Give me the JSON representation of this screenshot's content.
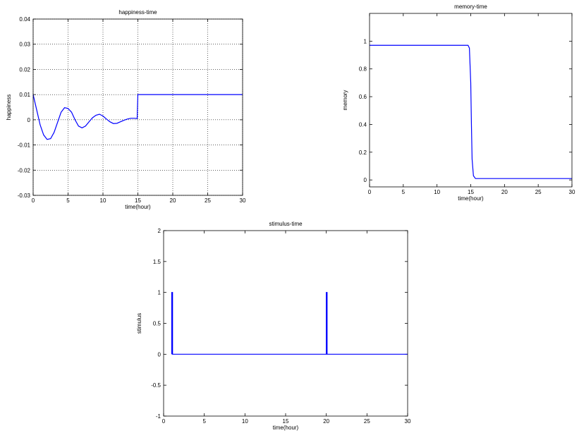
{
  "chart_data": [
    {
      "type": "line",
      "title": "happiness-time",
      "x_label": "time(hour)",
      "y_label": "happiness",
      "xlim": [
        0,
        30
      ],
      "xticks": [
        0,
        5,
        10,
        15,
        20,
        25,
        30
      ],
      "ylim": [
        -0.03,
        0.04
      ],
      "yticks": [
        -0.03,
        -0.02,
        -0.01,
        0,
        0.01,
        0.02,
        0.03,
        0.04
      ],
      "grid": true,
      "series": [
        {
          "color": "#0000ff",
          "x": [
            0,
            0.5,
            1,
            1.5,
            2,
            2.5,
            3,
            3.5,
            4,
            4.5,
            5,
            5.5,
            6,
            6.5,
            7,
            7.5,
            8,
            8.5,
            9,
            9.5,
            10,
            10.5,
            11,
            11.5,
            12,
            12.5,
            13,
            13.5,
            14,
            14.5,
            14.9,
            15,
            30
          ],
          "values": [
            0.01,
            0.004,
            -0.002,
            -0.006,
            -0.0078,
            -0.0075,
            -0.005,
            -0.001,
            0.003,
            0.0048,
            0.0045,
            0.003,
            0,
            -0.0025,
            -0.0032,
            -0.0025,
            -0.0008,
            0.0008,
            0.0018,
            0.0022,
            0.0015,
            0.0003,
            -0.0008,
            -0.0015,
            -0.0014,
            -0.0008,
            -0.0002,
            0.0003,
            0.0006,
            0.0006,
            0.0005,
            0.01,
            0.01
          ]
        }
      ]
    },
    {
      "type": "line",
      "title": "memory-time",
      "x_label": "time(hour)",
      "y_label": "memory",
      "xlim": [
        0,
        30
      ],
      "xticks": [
        0,
        5,
        10,
        15,
        20,
        25,
        30
      ],
      "ylim": [
        -0.05,
        1.2
      ],
      "yticks": [
        0,
        0.2,
        0.4,
        0.6,
        0.8,
        1
      ],
      "grid": false,
      "series": [
        {
          "color": "#0000ff",
          "x": [
            0,
            14.6,
            14.8,
            15,
            15.1,
            15.2,
            15.4,
            15.7,
            30
          ],
          "values": [
            0.97,
            0.97,
            0.95,
            0.7,
            0.4,
            0.15,
            0.03,
            0.01,
            0.01
          ]
        }
      ]
    },
    {
      "type": "line",
      "title": "stimulus-time",
      "x_label": "time(hour)",
      "y_label": "stimulus",
      "xlim": [
        0,
        30
      ],
      "xticks": [
        0,
        5,
        10,
        15,
        20,
        25,
        30
      ],
      "ylim": [
        -1,
        2
      ],
      "yticks": [
        -1,
        -0.5,
        0,
        0.5,
        1,
        1.5,
        2
      ],
      "grid": false,
      "series": [
        {
          "color": "#0000ff",
          "x": [
            1,
            1,
            1.1,
            1.1,
            20,
            20,
            20.1,
            20.1,
            30
          ],
          "values": [
            0,
            1,
            1,
            0,
            0,
            1,
            1,
            0,
            0
          ]
        }
      ]
    }
  ]
}
